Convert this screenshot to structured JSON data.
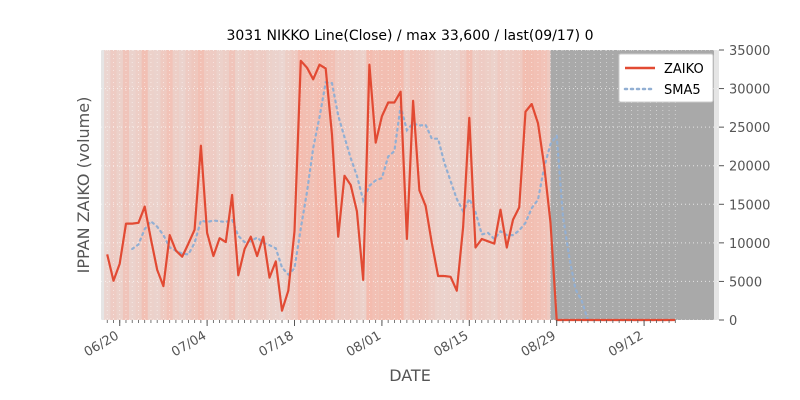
{
  "chart_data": {
    "type": "line",
    "title": "3031 NIKKO Line(Close) / max 33,600 / last(09/17) 0",
    "xlabel": "DATE",
    "ylabel": "IPPAN ZAIKO (volume)",
    "ylim": [
      0,
      35000
    ],
    "y_ticks": [
      0,
      5000,
      10000,
      15000,
      20000,
      25000,
      30000,
      35000
    ],
    "y_tick_labels": [
      "0",
      "5000",
      "10000",
      "15000",
      "20000",
      "25000",
      "30000",
      "35000"
    ],
    "x_tick_labels": [
      "06/20",
      "07/04",
      "07/18",
      "08/01",
      "08/15",
      "08/29",
      "09/12"
    ],
    "x_range": [
      "06/17",
      "09/24"
    ],
    "no_data_from": "08/28",
    "legend_position": "top-right",
    "grid": true,
    "colors": {
      "zaiko": "#E24A33",
      "sma5": "#92AFD3",
      "background": "#E5E5E5",
      "shade": "#F5B7A8",
      "nodata": "#A9A9A9"
    },
    "x": [
      "06/18",
      "06/19",
      "06/20",
      "06/21",
      "06/22",
      "06/23",
      "06/24",
      "06/25",
      "06/26",
      "06/27",
      "06/28",
      "06/29",
      "06/30",
      "07/01",
      "07/02",
      "07/03",
      "07/04",
      "07/05",
      "07/06",
      "07/07",
      "07/08",
      "07/09",
      "07/10",
      "07/11",
      "07/12",
      "07/13",
      "07/14",
      "07/15",
      "07/16",
      "07/17",
      "07/18",
      "07/19",
      "07/20",
      "07/21",
      "07/22",
      "07/23",
      "07/24",
      "07/25",
      "07/26",
      "07/27",
      "07/28",
      "07/29",
      "07/30",
      "07/31",
      "08/01",
      "08/02",
      "08/03",
      "08/04",
      "08/05",
      "08/06",
      "08/07",
      "08/08",
      "08/09",
      "08/10",
      "08/11",
      "08/12",
      "08/13",
      "08/14",
      "08/15",
      "08/16",
      "08/17",
      "08/18",
      "08/19",
      "08/20",
      "08/21",
      "08/22",
      "08/23",
      "08/24",
      "08/25",
      "08/26",
      "08/27",
      "08/28",
      "08/29",
      "08/30",
      "08/31",
      "09/01",
      "09/02",
      "09/03",
      "09/04",
      "09/05",
      "09/06",
      "09/07",
      "09/08",
      "09/09",
      "09/10",
      "09/11",
      "09/12",
      "09/13",
      "09/14",
      "09/15",
      "09/16",
      "09/17"
    ],
    "series": [
      {
        "name": "ZAIKO",
        "values": [
          8500,
          5100,
          7300,
          12500,
          12500,
          12600,
          14700,
          10500,
          6500,
          4400,
          11000,
          9000,
          8200,
          9900,
          11700,
          22600,
          11300,
          8300,
          10600,
          10100,
          16200,
          5800,
          9200,
          10800,
          8300,
          10800,
          5500,
          7600,
          1200,
          3800,
          11500,
          33600,
          32700,
          31200,
          33100,
          32600,
          24000,
          10800,
          18700,
          17500,
          14100,
          5200,
          33100,
          23000,
          26400,
          28200,
          28200,
          29600,
          10500,
          28400,
          16800,
          14800,
          10000,
          5700,
          5700,
          5600,
          3800,
          12000,
          26200,
          9400,
          10500,
          10200,
          9900,
          14300,
          9400,
          13000,
          14600,
          27000,
          28000,
          25500,
          20000,
          12600,
          0,
          0,
          0,
          0,
          0,
          0,
          0,
          0,
          0,
          0,
          0,
          0,
          0,
          0,
          0,
          0,
          0,
          0,
          0,
          0
        ]
      },
      {
        "name": "SMA5",
        "values": [
          null,
          null,
          null,
          null,
          9200,
          9800,
          11800,
          12800,
          12100,
          11000,
          9400,
          9000,
          8600,
          8500,
          10000,
          12900,
          12700,
          12900,
          12800,
          12700,
          13000,
          10900,
          10100,
          10200,
          10700,
          10000,
          9700,
          9300,
          6800,
          5900,
          6700,
          11900,
          16600,
          22300,
          26300,
          30800,
          30700,
          26500,
          23700,
          21000,
          18700,
          15500,
          17400,
          18100,
          18400,
          21200,
          21900,
          27700,
          24600,
          25500,
          25200,
          25300,
          23500,
          23500,
          20400,
          18000,
          15700,
          14100,
          15700,
          14000,
          11100,
          11300,
          10500,
          11500,
          11000,
          11000,
          11600,
          12600,
          14500,
          15600,
          19800,
          22800,
          23900,
          13500,
          8200,
          4000,
          2500,
          0,
          0,
          0,
          0,
          0,
          0,
          0,
          0,
          0,
          0,
          0,
          0,
          0,
          0,
          0
        ]
      }
    ],
    "shading": [
      0.35,
      0.55,
      0.45,
      0.7,
      0.4,
      0.5,
      0.8,
      0.45,
      0.4,
      0.6,
      0.75,
      0.5,
      0.4,
      0.55,
      0.65,
      0.8,
      0.6,
      0.55,
      0.45,
      0.5,
      0.7,
      0.45,
      0.5,
      0.6,
      0.5,
      0.55,
      0.45,
      0.4,
      0.35,
      0.5,
      0.6,
      0.9,
      0.85,
      0.8,
      0.9,
      0.85,
      0.8,
      0.6,
      0.55,
      0.6,
      0.5,
      0.45,
      0.9,
      0.8,
      0.85,
      0.85,
      0.85,
      0.9,
      0.55,
      0.75,
      0.7,
      0.65,
      0.55,
      0.45,
      0.4,
      0.45,
      0.4,
      0.55,
      0.8,
      0.5,
      0.55,
      0.5,
      0.45,
      0.6,
      0.5,
      0.55,
      0.6,
      0.85,
      0.85,
      0.8,
      0.75,
      0.6
    ]
  }
}
